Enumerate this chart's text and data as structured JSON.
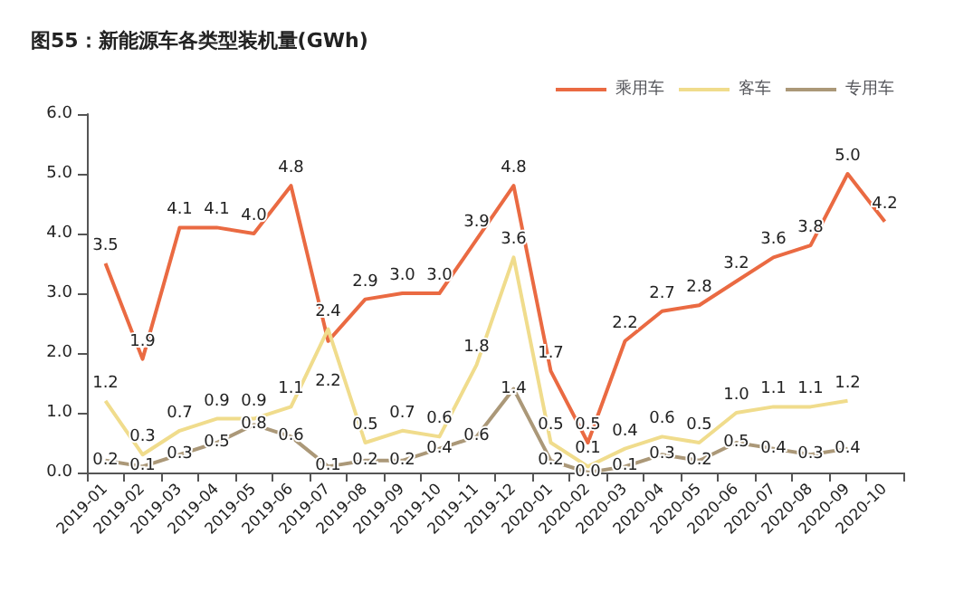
{
  "chart_data": {
    "type": "line",
    "title": "图55：新能源车各类型装机量(GWh)",
    "categories": [
      "2019-01",
      "2019-02",
      "2019-03",
      "2019-04",
      "2019-05",
      "2019-06",
      "2019-07",
      "2019-08",
      "2019-09",
      "2019-10",
      "2019-11",
      "2019-12",
      "2020-01",
      "2020-02",
      "2020-03",
      "2020-04",
      "2020-05",
      "2020-06",
      "2020-07",
      "2020-08",
      "2020-09",
      "2020-10"
    ],
    "series": [
      {
        "name": "乘用车",
        "color": "#ea6a42",
        "values": [
          3.5,
          1.9,
          4.1,
          4.1,
          4.0,
          4.8,
          2.2,
          2.9,
          3.0,
          3.0,
          3.9,
          4.8,
          1.7,
          0.5,
          2.2,
          2.7,
          2.8,
          3.2,
          3.6,
          3.8,
          5.0,
          4.2
        ],
        "value_labels": [
          "3.5",
          "1.9",
          "4.1",
          "4.1",
          "4.0",
          "4.8",
          "2.2",
          "2.9",
          "3.0",
          "3.0",
          "3.9",
          "4.8",
          "1.7",
          "0.5",
          "2.2",
          "2.7",
          "2.8",
          "3.2",
          "3.6",
          "3.8",
          "5.0",
          "4.2"
        ]
      },
      {
        "name": "客车",
        "color": "#f0dc8c",
        "values": [
          1.2,
          0.3,
          0.7,
          0.9,
          0.9,
          1.1,
          2.4,
          0.5,
          0.7,
          0.6,
          1.8,
          3.6,
          0.5,
          0.1,
          0.4,
          0.6,
          0.5,
          1.0,
          1.1,
          1.1,
          1.2,
          null
        ],
        "value_labels": [
          "1.2",
          "0.3",
          "0.7",
          "0.9",
          "0.9",
          "1.1",
          "2.4",
          "0.5",
          "0.7",
          "0.6",
          "1.8",
          "3.6",
          "0.5",
          "0.1",
          "0.4",
          "0.6",
          "0.5",
          "1.0",
          "1.1",
          "1.1",
          "1.2",
          null
        ]
      },
      {
        "name": "专用车",
        "color": "#ab9878",
        "values": [
          0.2,
          0.1,
          0.3,
          0.5,
          0.8,
          0.6,
          0.1,
          0.2,
          0.2,
          0.4,
          0.6,
          1.4,
          0.2,
          0.0,
          0.1,
          0.3,
          0.2,
          0.5,
          0.4,
          0.3,
          0.4,
          null
        ],
        "value_labels": [
          "0.2",
          "0.1",
          "0.3",
          "0.5",
          "0.8",
          "0.6",
          "0.1",
          "0.2",
          "0.2",
          "0.4",
          "0.6",
          "1.4",
          "0.2",
          "0.0",
          "0.1",
          "0.3",
          "0.2",
          "0.5",
          "0.4",
          "0.3",
          "0.4",
          null
        ]
      }
    ],
    "ylim": [
      0,
      6
    ],
    "yticks": [
      {
        "value": 0,
        "label": "0.0"
      },
      {
        "value": 1,
        "label": "1.0"
      },
      {
        "value": 2,
        "label": "2.0"
      },
      {
        "value": 3,
        "label": "3.0"
      },
      {
        "value": 4,
        "label": "4.0"
      },
      {
        "value": 5,
        "label": "5.0"
      },
      {
        "value": 6,
        "label": "6.0"
      }
    ],
    "grid": false,
    "legend": "top right",
    "marker": "none"
  }
}
